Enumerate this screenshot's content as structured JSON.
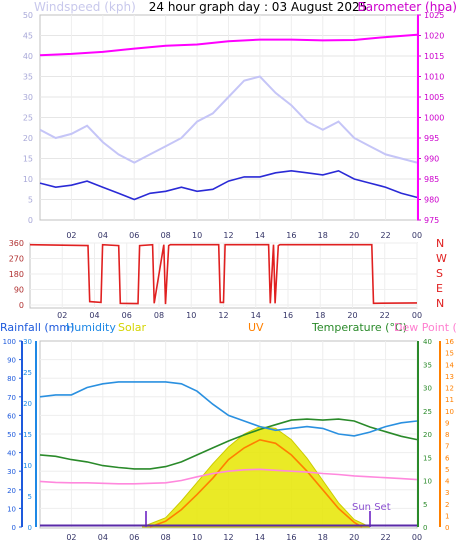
{
  "chart_data": [
    {
      "type": "line",
      "title": "24 hour graph day : 03 August 2025",
      "left_axis": {
        "label": "Windspeed (kph)",
        "range": [
          0,
          50
        ],
        "ticks": [
          "0",
          "5",
          "10",
          "15",
          "20",
          "25",
          "30",
          "35",
          "40",
          "45",
          "50"
        ]
      },
      "right_axis": {
        "label": "Barometer (hpa)",
        "range": [
          975,
          1025
        ],
        "ticks": [
          "975",
          "980",
          "985",
          "990",
          "995",
          "1000",
          "1005",
          "1010",
          "1015",
          "1020",
          "1025"
        ]
      },
      "x_ticks": [
        "02",
        "04",
        "06",
        "08",
        "10",
        "12",
        "14",
        "16",
        "18",
        "20",
        "22",
        "00"
      ],
      "series": [
        {
          "name": "Barometer (hpa)",
          "axis": "right",
          "color": "#ff00ff",
          "x": [
            0,
            2,
            4,
            6,
            8,
            10,
            12,
            14,
            16,
            18,
            20,
            22,
            24
          ],
          "values": [
            1015.2,
            1015.5,
            1016.0,
            1016.8,
            1017.5,
            1017.8,
            1018.6,
            1019.0,
            1019.0,
            1018.8,
            1018.9,
            1019.6,
            1020.2
          ]
        },
        {
          "name": "Wind average",
          "axis": "left",
          "color": "#2a2ad6",
          "x": [
            0,
            1,
            2,
            3,
            4,
            5,
            6,
            7,
            8,
            9,
            10,
            11,
            12,
            13,
            14,
            15,
            16,
            17,
            18,
            19,
            20,
            21,
            22,
            23,
            24
          ],
          "values": [
            9.0,
            8.0,
            8.5,
            9.5,
            8.0,
            6.5,
            5.0,
            6.5,
            7.0,
            8.0,
            7.0,
            7.5,
            9.5,
            10.5,
            10.5,
            11.5,
            12.0,
            11.5,
            11.0,
            12.0,
            10.0,
            9.0,
            8.0,
            6.5,
            5.5
          ]
        },
        {
          "name": "Wind gust",
          "axis": "left",
          "color": "#c8c8f8",
          "x": [
            0,
            1,
            2,
            3,
            4,
            5,
            6,
            7,
            8,
            9,
            10,
            11,
            12,
            13,
            14,
            15,
            16,
            17,
            18,
            19,
            20,
            21,
            22,
            23,
            24
          ],
          "values": [
            22,
            20,
            21,
            23,
            19,
            16,
            14,
            16,
            18,
            20,
            24,
            26,
            30,
            34,
            35,
            31,
            28,
            24,
            22,
            24,
            20,
            18,
            16,
            15,
            14
          ]
        }
      ]
    },
    {
      "type": "line",
      "left_axis": {
        "range": [
          0,
          360
        ],
        "ticks": [
          "0",
          "90",
          "180",
          "270",
          "360"
        ]
      },
      "right_labels": [
        "N",
        "W",
        "S",
        "E",
        "N"
      ],
      "x_ticks": [
        "02",
        "04",
        "06",
        "08",
        "10",
        "12",
        "14",
        "16",
        "18",
        "20",
        "22",
        "00"
      ],
      "series": [
        {
          "name": "Wind direction",
          "color": "#e02020",
          "x": [
            0,
            3.6,
            3.7,
            4.4,
            4.5,
            5.5,
            5.6,
            6.7,
            6.8,
            7.6,
            7.7,
            8.3,
            8.4,
            8.6,
            8.7,
            11.7,
            11.8,
            12.0,
            12.1,
            14.8,
            14.9,
            15.1,
            15.2,
            15.4,
            15.5,
            21.2,
            21.3,
            24
          ],
          "values": [
            350,
            345,
            20,
            15,
            350,
            345,
            10,
            8,
            345,
            350,
            10,
            350,
            5,
            345,
            350,
            350,
            15,
            15,
            350,
            350,
            10,
            350,
            10,
            345,
            350,
            350,
            10,
            12
          ]
        }
      ]
    },
    {
      "type": "area",
      "left_axes": [
        {
          "label": "Rainfall (mm)",
          "color": "#1e5adc",
          "range": [
            0,
            100
          ],
          "ticks": [
            "0",
            "10",
            "20",
            "30",
            "40",
            "50",
            "60",
            "70",
            "80",
            "90",
            "100"
          ]
        },
        {
          "label": "Humidity",
          "color": "#1e88e5",
          "range": [
            0,
            30
          ],
          "ticks": [
            "0",
            "5",
            "10",
            "15",
            "20",
            "25",
            "30"
          ]
        }
      ],
      "right_axes": [
        {
          "label": "Temperature (°C)",
          "color": "#2a8a2a",
          "range": [
            0,
            40
          ],
          "ticks": [
            "0",
            "5",
            "10",
            "15",
            "20",
            "25",
            "30",
            "35",
            "40"
          ]
        },
        {
          "label": "Dew Point (°C)",
          "color": "#ff7fd0"
        },
        {
          "label": "UV",
          "color": "#ff8000",
          "range": [
            0,
            16
          ],
          "ticks": [
            "0",
            "1",
            "2",
            "3",
            "4",
            "5",
            "6",
            "7",
            "8",
            "9",
            "10",
            "11",
            "12",
            "13",
            "14",
            "15",
            "16"
          ]
        }
      ],
      "labels": [
        "Solar"
      ],
      "annotations": [
        "Sun Set"
      ],
      "x_ticks": [
        "02",
        "04",
        "06",
        "08",
        "10",
        "12",
        "14",
        "16",
        "18",
        "20",
        "22",
        "00"
      ],
      "series": [
        {
          "name": "Humidity",
          "color": "#2a90e0",
          "x": [
            0,
            1,
            2,
            3,
            4,
            5,
            6,
            7,
            8,
            9,
            10,
            11,
            12,
            13,
            14,
            15,
            16,
            17,
            18,
            19,
            20,
            21,
            22,
            23,
            24
          ],
          "values": [
            70,
            71,
            71,
            75,
            77,
            78,
            78,
            78,
            78,
            77,
            73,
            66,
            60,
            57,
            54,
            52,
            53,
            54,
            53,
            50,
            49,
            51,
            54,
            56,
            57
          ]
        },
        {
          "name": "Temperature (°C)",
          "color": "#2a8a2a",
          "x": [
            0,
            1,
            2,
            3,
            4,
            5,
            6,
            7,
            8,
            9,
            10,
            11,
            12,
            13,
            14,
            15,
            16,
            17,
            18,
            19,
            20,
            21,
            22,
            23,
            24
          ],
          "values": [
            15.5,
            15.2,
            14.5,
            14.0,
            13.2,
            12.8,
            12.5,
            12.5,
            13.0,
            14.0,
            15.5,
            17.0,
            18.5,
            19.8,
            21.0,
            22.0,
            23.0,
            23.2,
            23.0,
            23.2,
            22.8,
            21.5,
            20.5,
            19.5,
            18.8
          ]
        },
        {
          "name": "Dew Point (°C)",
          "color": "#ff88dd",
          "x": [
            0,
            1,
            2,
            3,
            4,
            5,
            6,
            7,
            8,
            9,
            10,
            11,
            12,
            13,
            14,
            15,
            16,
            17,
            18,
            19,
            20,
            21,
            22,
            23,
            24
          ],
          "values": [
            9.8,
            9.6,
            9.5,
            9.5,
            9.4,
            9.3,
            9.3,
            9.4,
            9.5,
            10.0,
            10.8,
            11.5,
            12.0,
            12.3,
            12.4,
            12.2,
            12.0,
            11.8,
            11.5,
            11.3,
            11.0,
            10.8,
            10.6,
            10.4,
            10.2
          ]
        },
        {
          "name": "Solar",
          "color": "#eaea00",
          "x": [
            6.5,
            8,
            9,
            10,
            11,
            12,
            13,
            14,
            15,
            16,
            17,
            18,
            19,
            20,
            21
          ],
          "values": [
            0,
            5,
            14,
            24,
            34,
            43,
            50,
            54,
            53,
            47,
            37,
            25,
            13,
            4,
            0
          ]
        },
        {
          "name": "UV",
          "color": "#ff7f00",
          "x": [
            7,
            8,
            9,
            10,
            11,
            12,
            13,
            14,
            15,
            16,
            17,
            18,
            19,
            20,
            20.5
          ],
          "values": [
            0,
            0.5,
            1.5,
            2.8,
            4.2,
            5.8,
            6.8,
            7.5,
            7.2,
            6.2,
            4.8,
            3.2,
            1.6,
            0.4,
            0
          ]
        }
      ]
    }
  ]
}
